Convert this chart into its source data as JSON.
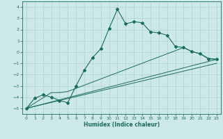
{
  "xlabel": "Humidex (Indice chaleur)",
  "xlim": [
    -0.5,
    23.5
  ],
  "ylim": [
    -5.5,
    4.5
  ],
  "xticks": [
    0,
    1,
    2,
    3,
    4,
    5,
    6,
    7,
    8,
    9,
    10,
    11,
    12,
    13,
    14,
    15,
    16,
    17,
    18,
    19,
    20,
    21,
    22,
    23
  ],
  "yticks": [
    -5,
    -4,
    -3,
    -2,
    -1,
    0,
    1,
    2,
    3,
    4
  ],
  "bg_color": "#cde8e8",
  "grid_color": "#aad0d0",
  "line_color": "#1a6b60",
  "line1_x": [
    0,
    1,
    2,
    3,
    4,
    5,
    6,
    7,
    8,
    9,
    10,
    11,
    12,
    13,
    14,
    15,
    16,
    17,
    18,
    19,
    20,
    21,
    22,
    23
  ],
  "line1_y": [
    -5.0,
    -4.1,
    -3.8,
    -4.0,
    -4.3,
    -4.5,
    -3.0,
    -1.6,
    -0.5,
    0.3,
    2.1,
    3.8,
    2.5,
    2.7,
    2.6,
    1.8,
    1.7,
    1.5,
    0.5,
    0.4,
    0.05,
    -0.15,
    -0.6,
    -0.65
  ],
  "line2_x": [
    0,
    3,
    4,
    5,
    19,
    20,
    21,
    22,
    23
  ],
  "line2_y": [
    -5.0,
    -3.6,
    -3.6,
    -3.5,
    0.4,
    0.05,
    -0.15,
    -0.55,
    -0.65
  ],
  "line3_x": [
    0,
    23
  ],
  "line3_y": [
    -5.0,
    -0.65
  ],
  "line4_x": [
    0,
    23
  ],
  "line4_y": [
    -5.0,
    -1.0
  ]
}
